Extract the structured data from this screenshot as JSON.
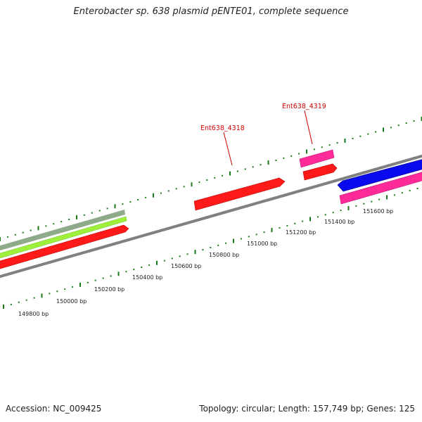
{
  "title": "Enterobacter sp. 638 plasmid pENTE01, complete sequence",
  "footer": {
    "accession": "Accession: NC_009425",
    "summary": "Topology: circular; Length: 157,749 bp; Genes: 125"
  },
  "scale_labels": [
    "149800 bp",
    "150000 bp",
    "150200 bp",
    "150400 bp",
    "150600 bp",
    "150800 bp",
    "151000 bp",
    "151200 bp",
    "151400 bp",
    "151600 bp"
  ],
  "gene_labels": [
    {
      "text": "Ent638_4318",
      "color": "#cc0000"
    },
    {
      "text": "Ent638_4319",
      "color": "#cc0000"
    }
  ],
  "colors": {
    "backbone": "#808080",
    "tick": "#1a7a1a",
    "red_gene": "#ff1a1a",
    "pink_gene": "#ff2a9a",
    "blue_gene": "#0a0aee",
    "lime_gene": "#9ef03a",
    "sage_gene": "#8faa8a"
  }
}
